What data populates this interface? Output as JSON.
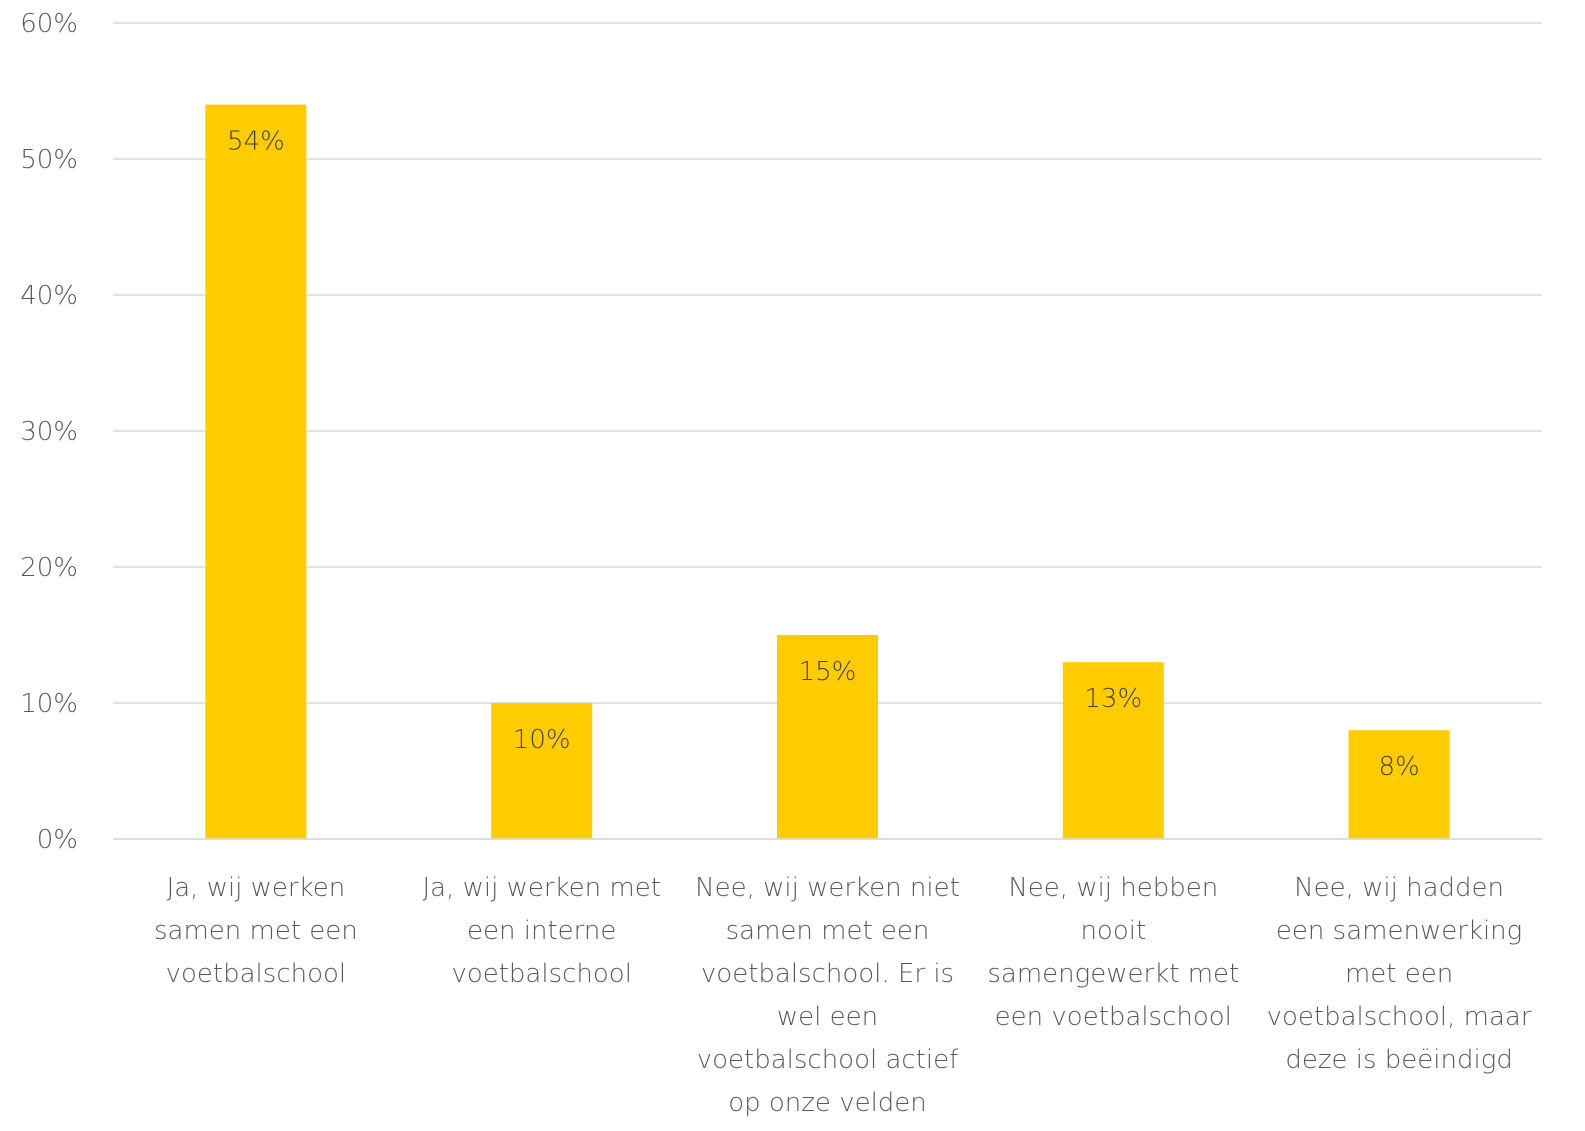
{
  "chart_data": {
    "type": "bar",
    "categories": [
      [
        "Ja, wij werken",
        "samen met een",
        "voetbalschool"
      ],
      [
        "Ja, wij werken met",
        "een interne",
        "voetbalschool"
      ],
      [
        "Nee, wij werken niet",
        "samen met een",
        "voetbalschool. Er is",
        "wel een",
        "voetbalschool actief",
        "op onze velden"
      ],
      [
        "Nee, wij hebben",
        "nooit",
        "samengewerkt met",
        "een voetbalschool"
      ],
      [
        "Nee, wij hadden",
        "een samenwerking",
        "met een",
        "voetbalschool, maar",
        "deze is beëindigd"
      ]
    ],
    "values": [
      54,
      10,
      15,
      13,
      8
    ],
    "data_labels": [
      "54%",
      "10%",
      "15%",
      "13%",
      "8%"
    ],
    "ylim": [
      0,
      60
    ],
    "yticks": [
      0,
      10,
      20,
      30,
      40,
      50,
      60
    ],
    "ytick_labels": [
      "0%",
      "10%",
      "20%",
      "30%",
      "40%",
      "50%",
      "60%"
    ],
    "title": "",
    "xlabel": "",
    "ylabel": "",
    "grid": true,
    "legend": "none",
    "colors": {
      "bar": "#FFCC00",
      "grid": "#D9D9D9",
      "text": "#595959"
    }
  }
}
